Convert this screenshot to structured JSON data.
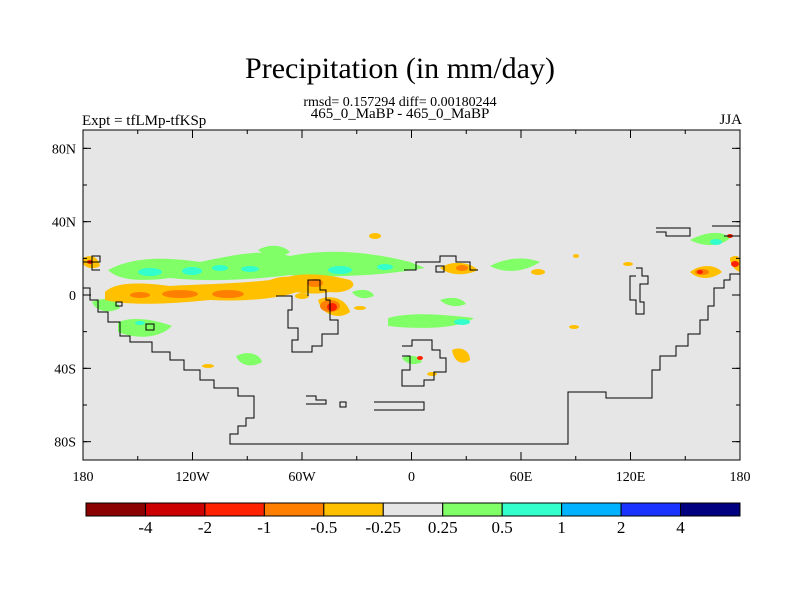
{
  "title": "Precipitation (in mm/day)",
  "stats_line": "rmsd= 0.157294 diff= 0.00180244",
  "period_line": "465_0_MaBP - 465_0_MaBP",
  "experiment_label": "Expt = tfLMp-tfKSp",
  "season_label": "JJA",
  "map": {
    "background_color": "#e6e6e6",
    "lon_range": [
      -180,
      180
    ],
    "lat_range": [
      -90,
      90
    ],
    "x_ticks": [
      {
        "lon": -180,
        "label": "180"
      },
      {
        "lon": -120,
        "label": "120W"
      },
      {
        "lon": -60,
        "label": "60W"
      },
      {
        "lon": 0,
        "label": "0"
      },
      {
        "lon": 60,
        "label": "60E"
      },
      {
        "lon": 120,
        "label": "120E"
      },
      {
        "lon": 180,
        "label": "180"
      }
    ],
    "y_ticks": [
      {
        "lat": 80,
        "label": "80N"
      },
      {
        "lat": 40,
        "label": "40N"
      },
      {
        "lat": 0,
        "label": "0"
      },
      {
        "lat": -40,
        "label": "40S"
      },
      {
        "lat": -80,
        "label": "80S"
      }
    ]
  },
  "colorbar": {
    "colors": [
      "#8b0000",
      "#cc0000",
      "#ff2200",
      "#ff8000",
      "#ffc000",
      "#e6e6e6",
      "#80ff66",
      "#33ffcc",
      "#00b2ff",
      "#1a33ff",
      "#000080"
    ],
    "labels": [
      "-4",
      "-2",
      "-1",
      "-0.5",
      "-0.25",
      "0.25",
      "0.5",
      "1",
      "2",
      "4"
    ]
  }
}
